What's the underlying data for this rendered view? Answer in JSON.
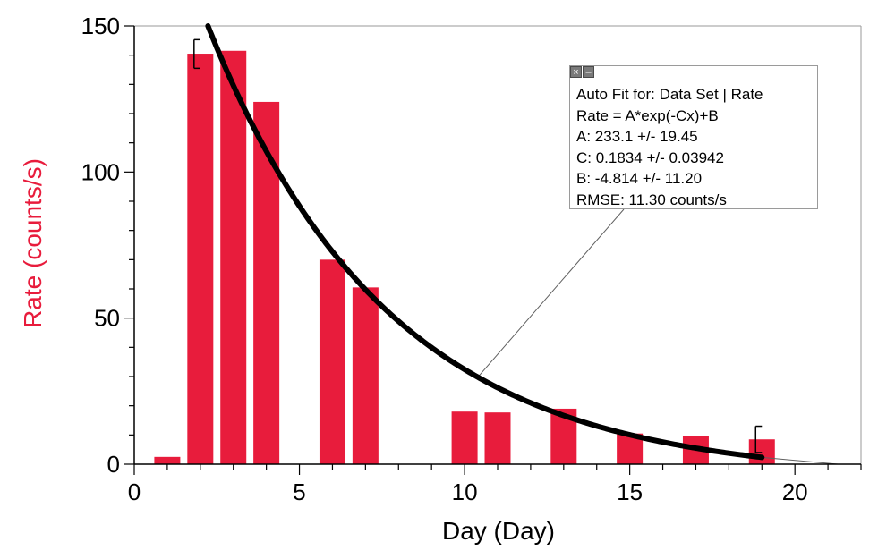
{
  "chart_data": {
    "type": "bar",
    "xlabel": "Day (Day)",
    "ylabel": "Rate (counts/s)",
    "xlim": [
      0,
      22
    ],
    "ylim": [
      0,
      150
    ],
    "x_ticks": [
      0,
      5,
      10,
      15,
      20
    ],
    "y_ticks": [
      0,
      50,
      100,
      150
    ],
    "grid": false,
    "series": [
      {
        "type": "bar",
        "color": "#e81c3c",
        "x": [
          1,
          2,
          3,
          4,
          6,
          7,
          10,
          11,
          13,
          15,
          17,
          19
        ],
        "values": [
          2.5,
          140.5,
          141.5,
          124,
          70,
          60.5,
          18,
          17.7,
          19,
          10.5,
          9.5,
          8.5
        ]
      },
      {
        "type": "fit-curve",
        "color": "#000000",
        "model": "A*exp(-Cx)+B",
        "params": {
          "A": 233.1,
          "C": 0.1834,
          "B": -4.814
        },
        "x_range": [
          1.8,
          19
        ]
      }
    ],
    "error_bars": [
      {
        "x": 2,
        "low": 135.5,
        "high": 145.3
      },
      {
        "x": 19,
        "low": 4.0,
        "high": 13.0
      }
    ],
    "annotation": {
      "lines": [
        "Auto Fit for: Data Set | Rate",
        "Rate = A*exp(-Cx)+B",
        "A: 233.1 +/- 19.45",
        "C: 0.1834 +/- 0.03942",
        "B: -4.814 +/- 11.20",
        "RMSE: 11.30 counts/s"
      ]
    }
  },
  "colors": {
    "bar": "#e81c3c",
    "ylabel": "#e81c3c",
    "curve": "#000000",
    "frame": "#9a9a9a"
  },
  "icons": {
    "close": "close-icon",
    "minimize": "minimize-icon"
  }
}
